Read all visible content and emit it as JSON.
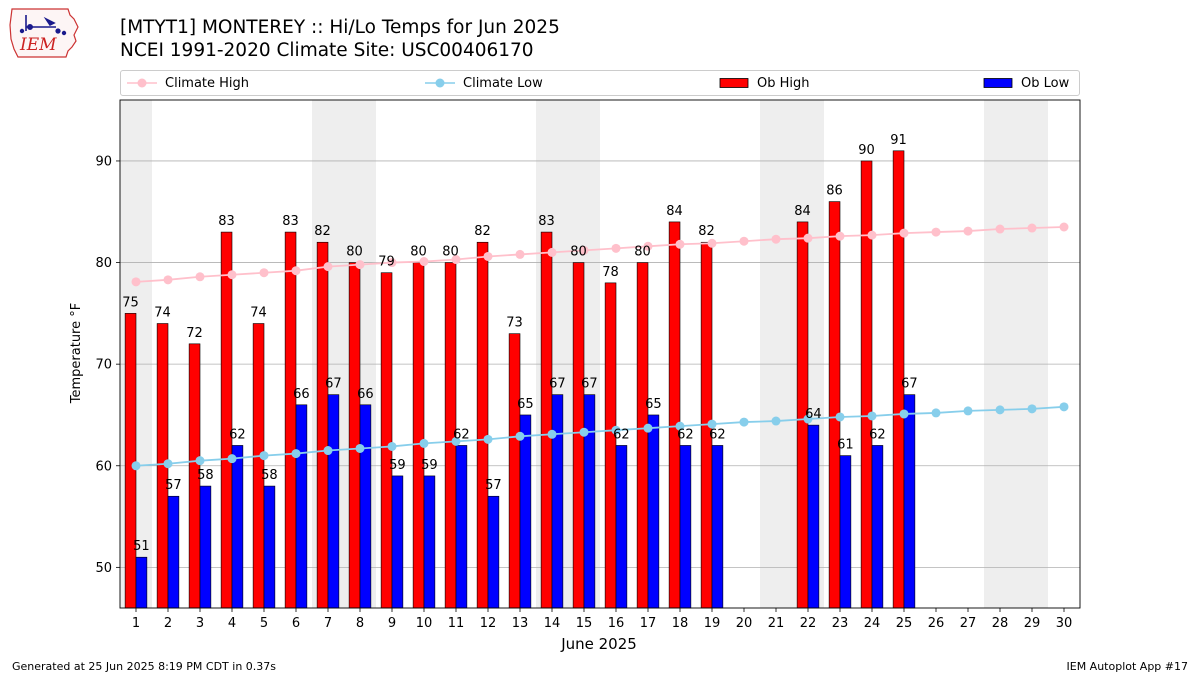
{
  "header": {
    "title": "[MTYT1] MONTEREY :: Hi/Lo Temps for Jun 2025",
    "subtitle": "NCEI 1991-2020 Climate Site: USC00406170",
    "logo_text": "IEM"
  },
  "legend": {
    "climate_high": "Climate High",
    "climate_low": "Climate Low",
    "ob_high": "Ob High",
    "ob_low": "Ob Low"
  },
  "footer": {
    "generated": "Generated at 25 Jun 2025 8:19 PM CDT in 0.37s",
    "app": "IEM Autoplot App #17"
  },
  "colors": {
    "ob_high": "#ff0000",
    "ob_low": "#0000ff",
    "climate_high": "#ffc0cb",
    "climate_low": "#87ceeb",
    "weekend_shade": "#eeeeee",
    "grid": "#b0b0b0"
  },
  "chart_data": {
    "type": "bar",
    "xlabel": "June 2025",
    "ylabel": "Temperature °F",
    "xlim": [
      0.5,
      30.5
    ],
    "ylim": [
      46,
      96
    ],
    "yticks": [
      50,
      60,
      70,
      80,
      90
    ],
    "categories": [
      1,
      2,
      3,
      4,
      5,
      6,
      7,
      8,
      9,
      10,
      11,
      12,
      13,
      14,
      15,
      16,
      17,
      18,
      19,
      20,
      21,
      22,
      23,
      24,
      25,
      26,
      27,
      28,
      29,
      30
    ],
    "weekend_days": [
      1,
      7,
      8,
      14,
      15,
      21,
      22,
      28,
      29
    ],
    "series": [
      {
        "name": "Ob High",
        "kind": "bar",
        "values": [
          75,
          74,
          72,
          83,
          74,
          83,
          82,
          80,
          79,
          80,
          80,
          82,
          73,
          83,
          80,
          78,
          80,
          84,
          82,
          null,
          null,
          84,
          86,
          90,
          91,
          null,
          null,
          null,
          null,
          null
        ]
      },
      {
        "name": "Ob Low",
        "kind": "bar",
        "values": [
          51,
          57,
          58,
          62,
          58,
          66,
          67,
          66,
          59,
          59,
          62,
          57,
          65,
          67,
          67,
          62,
          65,
          62,
          62,
          null,
          null,
          64,
          61,
          62,
          67,
          null,
          null,
          null,
          null,
          null
        ]
      },
      {
        "name": "Climate High",
        "kind": "line",
        "values": [
          78.1,
          78.3,
          78.6,
          78.8,
          79.0,
          79.2,
          79.6,
          79.8,
          80.0,
          80.1,
          80.3,
          80.6,
          80.8,
          81.0,
          81.2,
          81.4,
          81.6,
          81.8,
          81.9,
          82.1,
          82.3,
          82.4,
          82.6,
          82.7,
          82.9,
          83.0,
          83.1,
          83.3,
          83.4,
          83.5
        ]
      },
      {
        "name": "Climate Low",
        "kind": "line",
        "values": [
          60.0,
          60.2,
          60.5,
          60.7,
          61.0,
          61.2,
          61.5,
          61.7,
          61.9,
          62.2,
          62.4,
          62.6,
          62.9,
          63.1,
          63.3,
          63.5,
          63.7,
          63.9,
          64.1,
          64.3,
          64.4,
          64.6,
          64.8,
          64.9,
          65.1,
          65.2,
          65.4,
          65.5,
          65.6,
          65.8
        ]
      }
    ]
  }
}
